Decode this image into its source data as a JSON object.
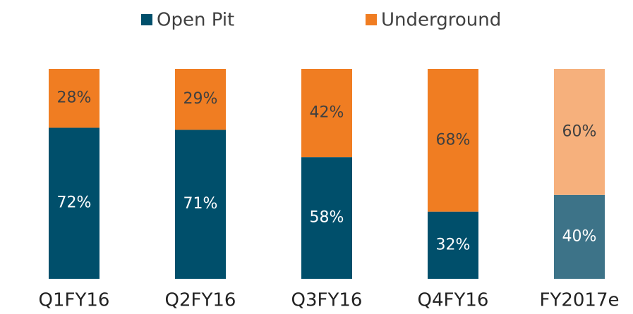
{
  "chart_data": {
    "type": "stacked_bar",
    "categories": [
      "Q1FY16",
      "Q2FY16",
      "Q3FY16",
      "Q4FY16",
      "FY2017e"
    ],
    "series": [
      {
        "name": "Open Pit",
        "color": "#004f6b",
        "colors": [
          "#004f6b",
          "#004f6b",
          "#004f6b",
          "#004f6b",
          "#3d7388"
        ],
        "values": [
          72,
          71,
          58,
          32,
          40
        ],
        "value_labels": [
          "72%",
          "71%",
          "58%",
          "32%",
          "40%"
        ]
      },
      {
        "name": "Underground",
        "color": "#f07d22",
        "colors": [
          "#f07d22",
          "#f07d22",
          "#f07d22",
          "#f07d22",
          "#f6b07c"
        ],
        "values": [
          28,
          29,
          42,
          68,
          60
        ],
        "value_labels": [
          "28%",
          "29%",
          "42%",
          "68%",
          "60%"
        ]
      }
    ],
    "ylim": [
      0,
      100
    ],
    "legend": "top"
  }
}
